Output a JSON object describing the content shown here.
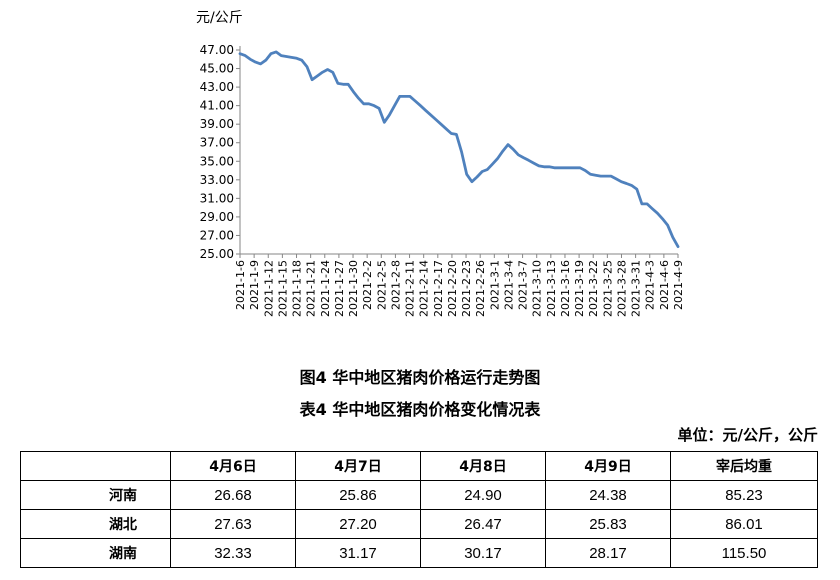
{
  "chart_data": {
    "type": "line",
    "ylabel": "元/公斤",
    "ylim": [
      25,
      47
    ],
    "yticks": [
      "47.00",
      "45.00",
      "43.00",
      "41.00",
      "39.00",
      "37.00",
      "35.00",
      "33.00",
      "31.00",
      "29.00",
      "27.00",
      "25.00"
    ],
    "xticks": [
      "2021-1-6",
      "2021-1-9",
      "2021-1-12",
      "2021-1-15",
      "2021-1-18",
      "2021-1-21",
      "2021-1-24",
      "2021-1-27",
      "2021-1-30",
      "2021-2-2",
      "2021-2-5",
      "2021-2-8",
      "2021-2-11",
      "2021-2-14",
      "2021-2-17",
      "2021-2-20",
      "2021-2-23",
      "2021-2-26",
      "2021-3-1",
      "2021-3-4",
      "2021-3-7",
      "2021-3-10",
      "2021-3-13",
      "2021-3-16",
      "2021-3-19",
      "2021-3-22",
      "2021-3-25",
      "2021-3-28",
      "2021-3-31",
      "2021-4-3",
      "2021-4-6",
      "2021-4-9"
    ],
    "grid": false,
    "series": [
      {
        "color": "#4f81bd",
        "values": [
          46.6,
          46.4,
          46.0,
          45.7,
          45.5,
          45.9,
          46.6,
          46.8,
          46.4,
          46.3,
          46.2,
          46.1,
          45.9,
          45.2,
          43.8,
          44.2,
          44.6,
          44.9,
          44.6,
          43.4,
          43.3,
          43.3,
          42.5,
          41.8,
          41.2,
          41.2,
          41.0,
          40.7,
          39.2,
          40.0,
          41.0,
          42.0,
          42.0,
          42.0,
          41.5,
          41.0,
          40.5,
          40.0,
          39.5,
          39.0,
          38.5,
          38.0,
          37.9,
          36.0,
          33.6,
          32.8,
          33.3,
          33.9,
          34.1,
          34.7,
          35.3,
          36.1,
          36.8,
          36.3,
          35.7,
          35.4,
          35.1,
          34.8,
          34.5,
          34.4,
          34.4,
          34.3,
          34.3,
          34.3,
          34.3,
          34.3,
          34.3,
          34.0,
          33.6,
          33.5,
          33.4,
          33.4,
          33.4,
          33.1,
          32.8,
          32.6,
          32.4,
          32.0,
          30.4,
          30.4,
          29.9,
          29.4,
          28.8,
          28.1,
          26.8,
          25.8
        ]
      }
    ]
  },
  "captions": {
    "figure": "图4  华中地区猪肉价格运行走势图",
    "table": "表4  华中地区猪肉价格变化情况表",
    "unit": "单位：元/公斤，公斤"
  },
  "table": {
    "headers": [
      "",
      "4月6日",
      "4月7日",
      "4月8日",
      "4月9日",
      "宰后均重"
    ],
    "rows": [
      [
        "河南",
        "26.68",
        "25.86",
        "24.90",
        "24.38",
        "85.23"
      ],
      [
        "湖北",
        "27.63",
        "27.20",
        "26.47",
        "25.83",
        "86.01"
      ],
      [
        "湖南",
        "32.33",
        "31.17",
        "30.17",
        "28.17",
        "115.50"
      ]
    ]
  }
}
